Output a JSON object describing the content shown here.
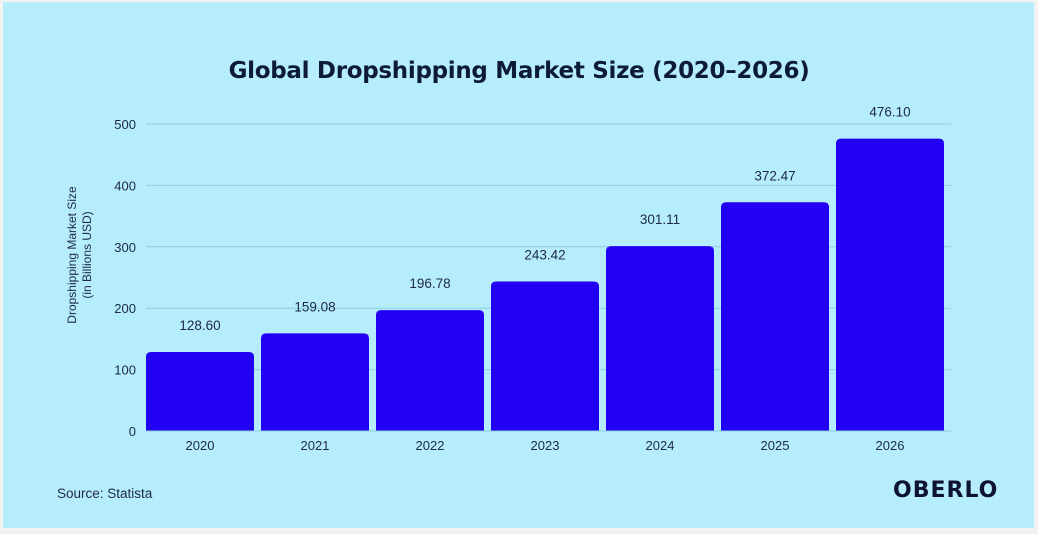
{
  "chart_data": {
    "type": "bar",
    "title": "Global Dropshipping Market Size (2020–2026)",
    "ylabel": [
      "Dropshipping Market Size",
      "(in Billions USD)"
    ],
    "xlabel": "",
    "categories": [
      "2020",
      "2021",
      "2022",
      "2023",
      "2024",
      "2025",
      "2026"
    ],
    "values": [
      128.6,
      159.08,
      196.78,
      243.42,
      301.11,
      372.47,
      476.1
    ],
    "value_labels": [
      "128.60",
      "159.08",
      "196.78",
      "243.42",
      "301.11",
      "372.47",
      "476.10"
    ],
    "ylim": [
      0,
      500
    ],
    "yticks": [
      0,
      100,
      200,
      300,
      400,
      500
    ],
    "grid": true,
    "legend": "none",
    "bar_color": "#2200f2",
    "background_color": "#b5edfc"
  },
  "footer": {
    "source": "Source: Statista",
    "logo": "OBERLO"
  }
}
